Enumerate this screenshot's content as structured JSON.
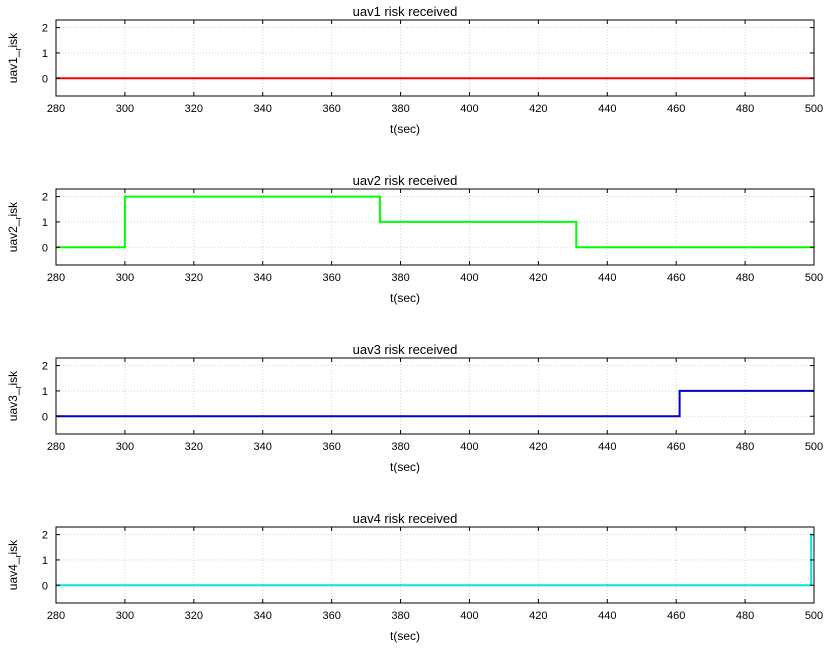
{
  "colors": {
    "grid": "#c8c8c8",
    "axis": "#000000"
  },
  "chart_data": [
    {
      "type": "line",
      "title": "uav1 risk received",
      "xlabel": "t(sec)",
      "ylabel_main": "uav1",
      "ylabel_sub": "r",
      "ylabel_tail": "isk",
      "xlim": [
        280,
        500
      ],
      "ylim": [
        -0.7,
        2.3
      ],
      "xticks": [
        280,
        300,
        320,
        340,
        360,
        380,
        400,
        420,
        440,
        460,
        480,
        500
      ],
      "yticks": [
        0,
        1,
        2
      ],
      "grid": true,
      "series": [
        {
          "color": "#ff0000",
          "x": [
            280,
            500
          ],
          "y": [
            0,
            0
          ]
        }
      ]
    },
    {
      "type": "line",
      "title": "uav2 risk received",
      "xlabel": "t(sec)",
      "ylabel_main": "uav2",
      "ylabel_sub": "r",
      "ylabel_tail": "isk",
      "xlim": [
        280,
        500
      ],
      "ylim": [
        -0.7,
        2.3
      ],
      "xticks": [
        280,
        300,
        320,
        340,
        360,
        380,
        400,
        420,
        440,
        460,
        480,
        500
      ],
      "yticks": [
        0,
        1,
        2
      ],
      "grid": true,
      "series": [
        {
          "color": "#00ff00",
          "x": [
            280,
            300,
            300,
            374,
            374,
            431,
            431,
            500
          ],
          "y": [
            0,
            0,
            2,
            2,
            1,
            1,
            0,
            0
          ]
        }
      ]
    },
    {
      "type": "line",
      "title": "uav3 risk received",
      "xlabel": "t(sec)",
      "ylabel_main": "uav3",
      "ylabel_sub": "r",
      "ylabel_tail": "isk",
      "xlim": [
        280,
        500
      ],
      "ylim": [
        -0.7,
        2.3
      ],
      "xticks": [
        280,
        300,
        320,
        340,
        360,
        380,
        400,
        420,
        440,
        460,
        480,
        500
      ],
      "yticks": [
        0,
        1,
        2
      ],
      "grid": true,
      "series": [
        {
          "color": "#0000cc",
          "x": [
            280,
            461,
            461,
            500
          ],
          "y": [
            0,
            0,
            1,
            1
          ]
        }
      ]
    },
    {
      "type": "line",
      "title": "uav4 risk received",
      "xlabel": "t(sec)",
      "ylabel_main": "uav4",
      "ylabel_sub": "r",
      "ylabel_tail": "isk",
      "xlim": [
        280,
        500
      ],
      "ylim": [
        -0.7,
        2.3
      ],
      "xticks": [
        280,
        300,
        320,
        340,
        360,
        380,
        400,
        420,
        440,
        460,
        480,
        500
      ],
      "yticks": [
        0,
        1,
        2
      ],
      "grid": true,
      "series": [
        {
          "color": "#00e5e5",
          "x": [
            280,
            499.2,
            499.2,
            500
          ],
          "y": [
            0,
            0,
            2,
            2
          ]
        }
      ]
    }
  ]
}
